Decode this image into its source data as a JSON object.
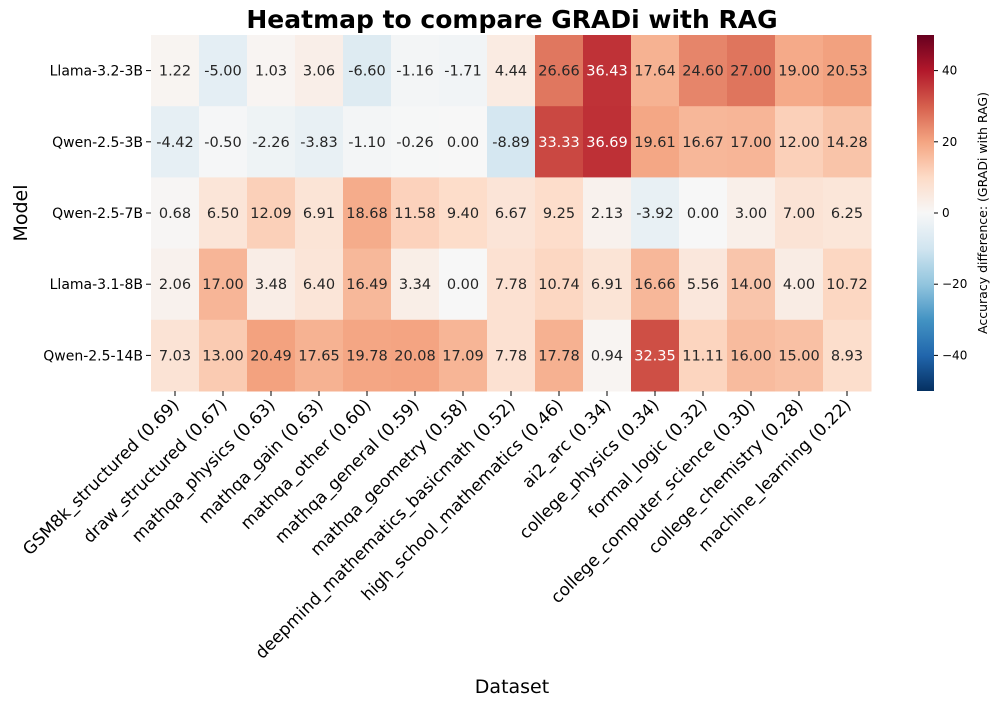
{
  "chart_data": {
    "type": "heatmap",
    "title": "Heatmap to compare GRADi with RAG",
    "xlabel": "Dataset",
    "ylabel": "Model",
    "colorbar_label": "Accuracy difference: (GRADi with RAG)",
    "colorbar_range": [
      -50,
      50
    ],
    "colorbar_ticks": [
      -40,
      -20,
      0,
      20,
      40
    ],
    "colorbar_tick_labels": [
      "−40",
      "−20",
      "0",
      "20",
      "40"
    ],
    "rows": [
      "Llama-3.2-3B",
      "Qwen-2.5-3B",
      "Qwen-2.5-7B",
      "Llama-3.1-8B",
      "Qwen-2.5-14B"
    ],
    "columns": [
      "GSM8k_structured (0.69)",
      "draw_structured (0.67)",
      "mathqa_physics (0.63)",
      "mathqa_gain (0.63)",
      "mathqa_other (0.60)",
      "mathqa_general (0.59)",
      "mathqa_geometry (0.58)",
      "deepmind_mathematics_basicmath (0.52)",
      "high_school_mathematics (0.46)",
      "ai2_arc (0.34)",
      "college_physics (0.34)",
      "formal_logic (0.32)",
      "college_computer_science (0.30)",
      "college_chemistry (0.28)",
      "machine_learning (0.22)"
    ],
    "values": [
      [
        1.22,
        -5.0,
        1.03,
        3.06,
        -6.6,
        -1.16,
        -1.71,
        4.44,
        26.66,
        36.43,
        17.64,
        24.6,
        27.0,
        19.0,
        20.53
      ],
      [
        -4.42,
        -0.5,
        -2.26,
        -3.83,
        -1.1,
        -0.26,
        0.0,
        -8.89,
        33.33,
        36.69,
        19.61,
        16.67,
        17.0,
        12.0,
        14.28
      ],
      [
        0.68,
        6.5,
        12.09,
        6.91,
        18.68,
        11.58,
        9.4,
        6.67,
        9.25,
        2.13,
        -3.92,
        0.0,
        3.0,
        7.0,
        6.25
      ],
      [
        2.06,
        17.0,
        3.48,
        6.4,
        16.49,
        3.34,
        0.0,
        7.78,
        10.74,
        6.91,
        16.66,
        5.56,
        14.0,
        4.0,
        10.72
      ],
      [
        7.03,
        13.0,
        20.49,
        17.65,
        19.78,
        20.08,
        17.09,
        7.78,
        17.78,
        0.94,
        32.35,
        11.11,
        16.0,
        15.0,
        8.93
      ]
    ],
    "colormap": "RdBu_r"
  }
}
